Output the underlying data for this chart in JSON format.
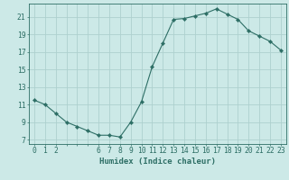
{
  "x": [
    0,
    1,
    2,
    3,
    4,
    5,
    6,
    7,
    8,
    9,
    10,
    11,
    12,
    13,
    14,
    15,
    16,
    17,
    18,
    19,
    20,
    21,
    22,
    23
  ],
  "y": [
    11.5,
    11.0,
    10.0,
    9.0,
    8.5,
    8.0,
    7.5,
    7.5,
    7.3,
    9.0,
    11.3,
    15.3,
    18.0,
    20.7,
    20.8,
    21.1,
    21.4,
    21.9,
    21.3,
    20.7,
    19.4,
    18.8,
    18.2,
    17.2
  ],
  "line_color": "#2d6e65",
  "marker": "D",
  "marker_size": 2.2,
  "bg_color": "#cce9e7",
  "grid_color": "#aed0ce",
  "xlabel": "Humidex (Indice chaleur)",
  "xlim": [
    -0.5,
    23.5
  ],
  "ylim": [
    6.5,
    22.5
  ],
  "yticks": [
    7,
    9,
    11,
    13,
    15,
    17,
    19,
    21
  ],
  "xticks_show": [
    0,
    1,
    2,
    6,
    7,
    8,
    9,
    10,
    11,
    12,
    13,
    14,
    15,
    16,
    17,
    18,
    19,
    20,
    21,
    22,
    23
  ],
  "label_fontsize": 6.5,
  "tick_fontsize": 5.8
}
